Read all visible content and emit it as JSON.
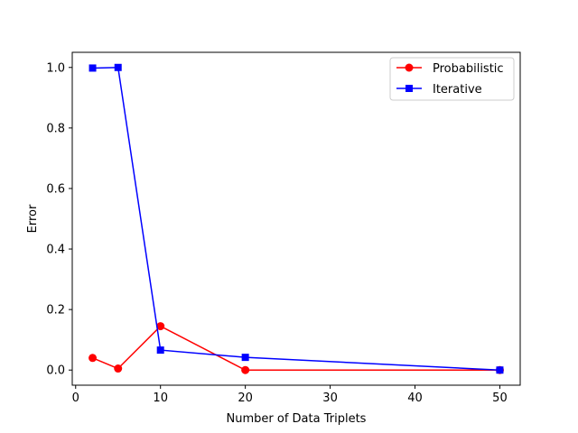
{
  "chart_data": {
    "type": "line",
    "xlabel": "Number of Data Triplets",
    "ylabel": "Error",
    "xlim": [
      -0.4,
      52.4
    ],
    "ylim": [
      -0.05,
      1.05
    ],
    "xticks": [
      0,
      10,
      20,
      30,
      40,
      50
    ],
    "yticks": [
      0.0,
      0.2,
      0.4,
      0.6,
      0.8,
      1.0
    ],
    "xtick_labels": [
      "0",
      "10",
      "20",
      "30",
      "40",
      "50"
    ],
    "ytick_labels": [
      "0.0",
      "0.2",
      "0.4",
      "0.6",
      "0.8",
      "1.0"
    ],
    "grid": false,
    "legend": "top-right",
    "series": [
      {
        "name": "Probabilistic",
        "color": "#ff0000",
        "marker": "circle",
        "x": [
          2,
          5,
          10,
          20,
          50
        ],
        "y": [
          0.04,
          0.005,
          0.145,
          0.0,
          0.0
        ]
      },
      {
        "name": "Iterative",
        "color": "#0000ff",
        "marker": "square",
        "x": [
          2,
          5,
          10,
          20,
          50
        ],
        "y": [
          0.998,
          1.0,
          0.066,
          0.042,
          0.0
        ]
      }
    ]
  }
}
